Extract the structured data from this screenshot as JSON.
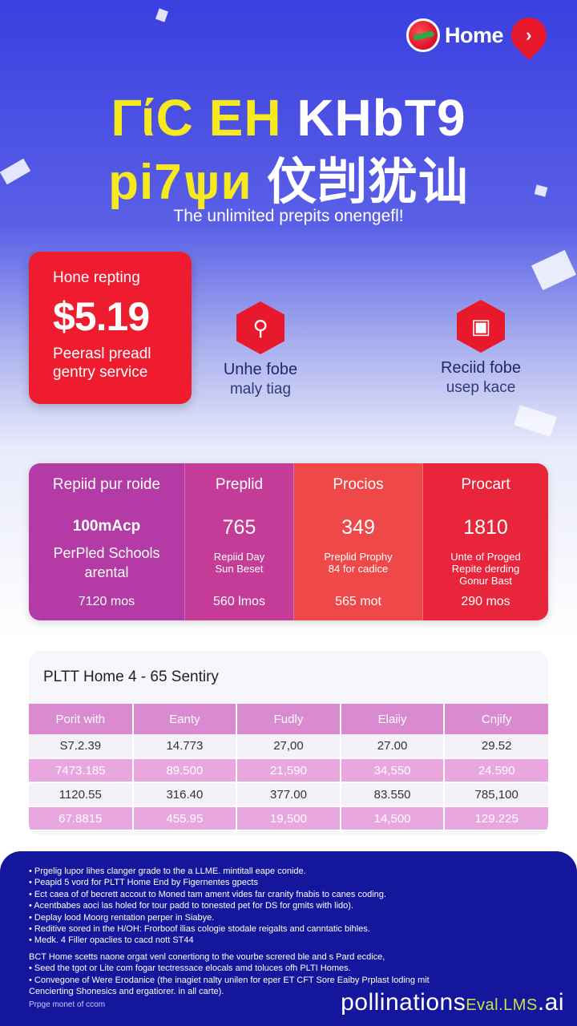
{
  "brand": {
    "name": "Home",
    "pin_glyph": "›"
  },
  "hero": {
    "line1_yellow": "ΓίϹ ΕΗ",
    "line1_white": "ΚΗbΤ9",
    "line2_yellow": "pi7ѱи",
    "line2_white": "伩剀犹讪",
    "tagline": "The unlimited prepits onengefl!"
  },
  "price_card": {
    "label": "Hone repting",
    "price": "$5.19",
    "desc_line1": "Peerasl preadl",
    "desc_line2": "gentry service"
  },
  "features": [
    {
      "icon": "search-icon",
      "glyph": "⚲",
      "title": "Unhe fobe",
      "sub": "maly tiag"
    },
    {
      "icon": "camera-icon",
      "glyph": "▣",
      "title": "Reciid fobe",
      "sub": "usep kace"
    }
  ],
  "plans": [
    {
      "header": "Repiid pur roide",
      "main": "100mAcp",
      "sub": "PerPled Schools arental",
      "foot": "7120 mos",
      "color": "#b43aa6"
    },
    {
      "header": "Preplid",
      "main": "765",
      "sub": "Repiid Day Sun Beset",
      "foot": "560 lmos",
      "color": "#c43c98"
    },
    {
      "header": "Procios",
      "main": "349",
      "sub": "Preplid Prophy 84 for cadice",
      "foot": "565 mot",
      "color": "#ee4848"
    },
    {
      "header": "Procart",
      "main": "1810",
      "sub": "Unte of Proged Repite derding Gonur Bast",
      "foot": "290 mos",
      "color": "#e8253a"
    }
  ],
  "table": {
    "title": "PLTT Home 4 - 65 Sentiry",
    "headers": [
      "Porit with",
      "Eanty",
      "Fudly",
      "Elaiiy",
      "Cnjify"
    ],
    "rows": [
      [
        "S7.2.39",
        "14.773",
        "27,00",
        "27.00",
        "29.52"
      ],
      [
        "7473.185",
        "89.500",
        "21,590",
        "34,550",
        "24.590"
      ],
      [
        "1120.55",
        "316.40",
        "377.00",
        "83.550",
        "785,100"
      ],
      [
        "67.8815",
        "455.95",
        "19,500",
        "14,500",
        "129.225"
      ]
    ]
  },
  "footer": {
    "bullets": [
      "Prgelig lupor lihes clanger grade to the a LLME. mintitall eape conide.",
      "Peapid 5 vord for PLTT Home End by Figernentes gpects",
      "Ect caea of of becrett accout to Moned tam ament vides far cranity fnabis to canes coding.",
      "Acentbabes aoci las holed for tour padd to tonested pet for DS for gmits with lido).",
      "Deplay lood Moorg rentation perper in Siabye.",
      "Reditive sored in the H/OH: Frorboof ilias cologie stodale reigalts and canntatic bihles.",
      "Medk. 4 Filler opaclies to cacd nott ST44"
    ],
    "para_line": "BCT Home scetts naone orgat venl conertiong to the vourbe screred ble and s Pard ecdice,",
    "bullets2": [
      "Seed the tgot or Lite com fogar tectressace elocals amd toluces ofh PLTI Homes.",
      "Convegone of Were Erodanice (the inagiet nalty unilen for eper ET CFT Sore Eaiby Prplast loding mit Cencierting Shonesics and ergatiorer. in all carte)."
    ],
    "link": "Prpge monet of ccom",
    "watermark_main": "pollinations",
    "watermark_accent": "Eval.LMS",
    "watermark_tail": ".ai"
  }
}
